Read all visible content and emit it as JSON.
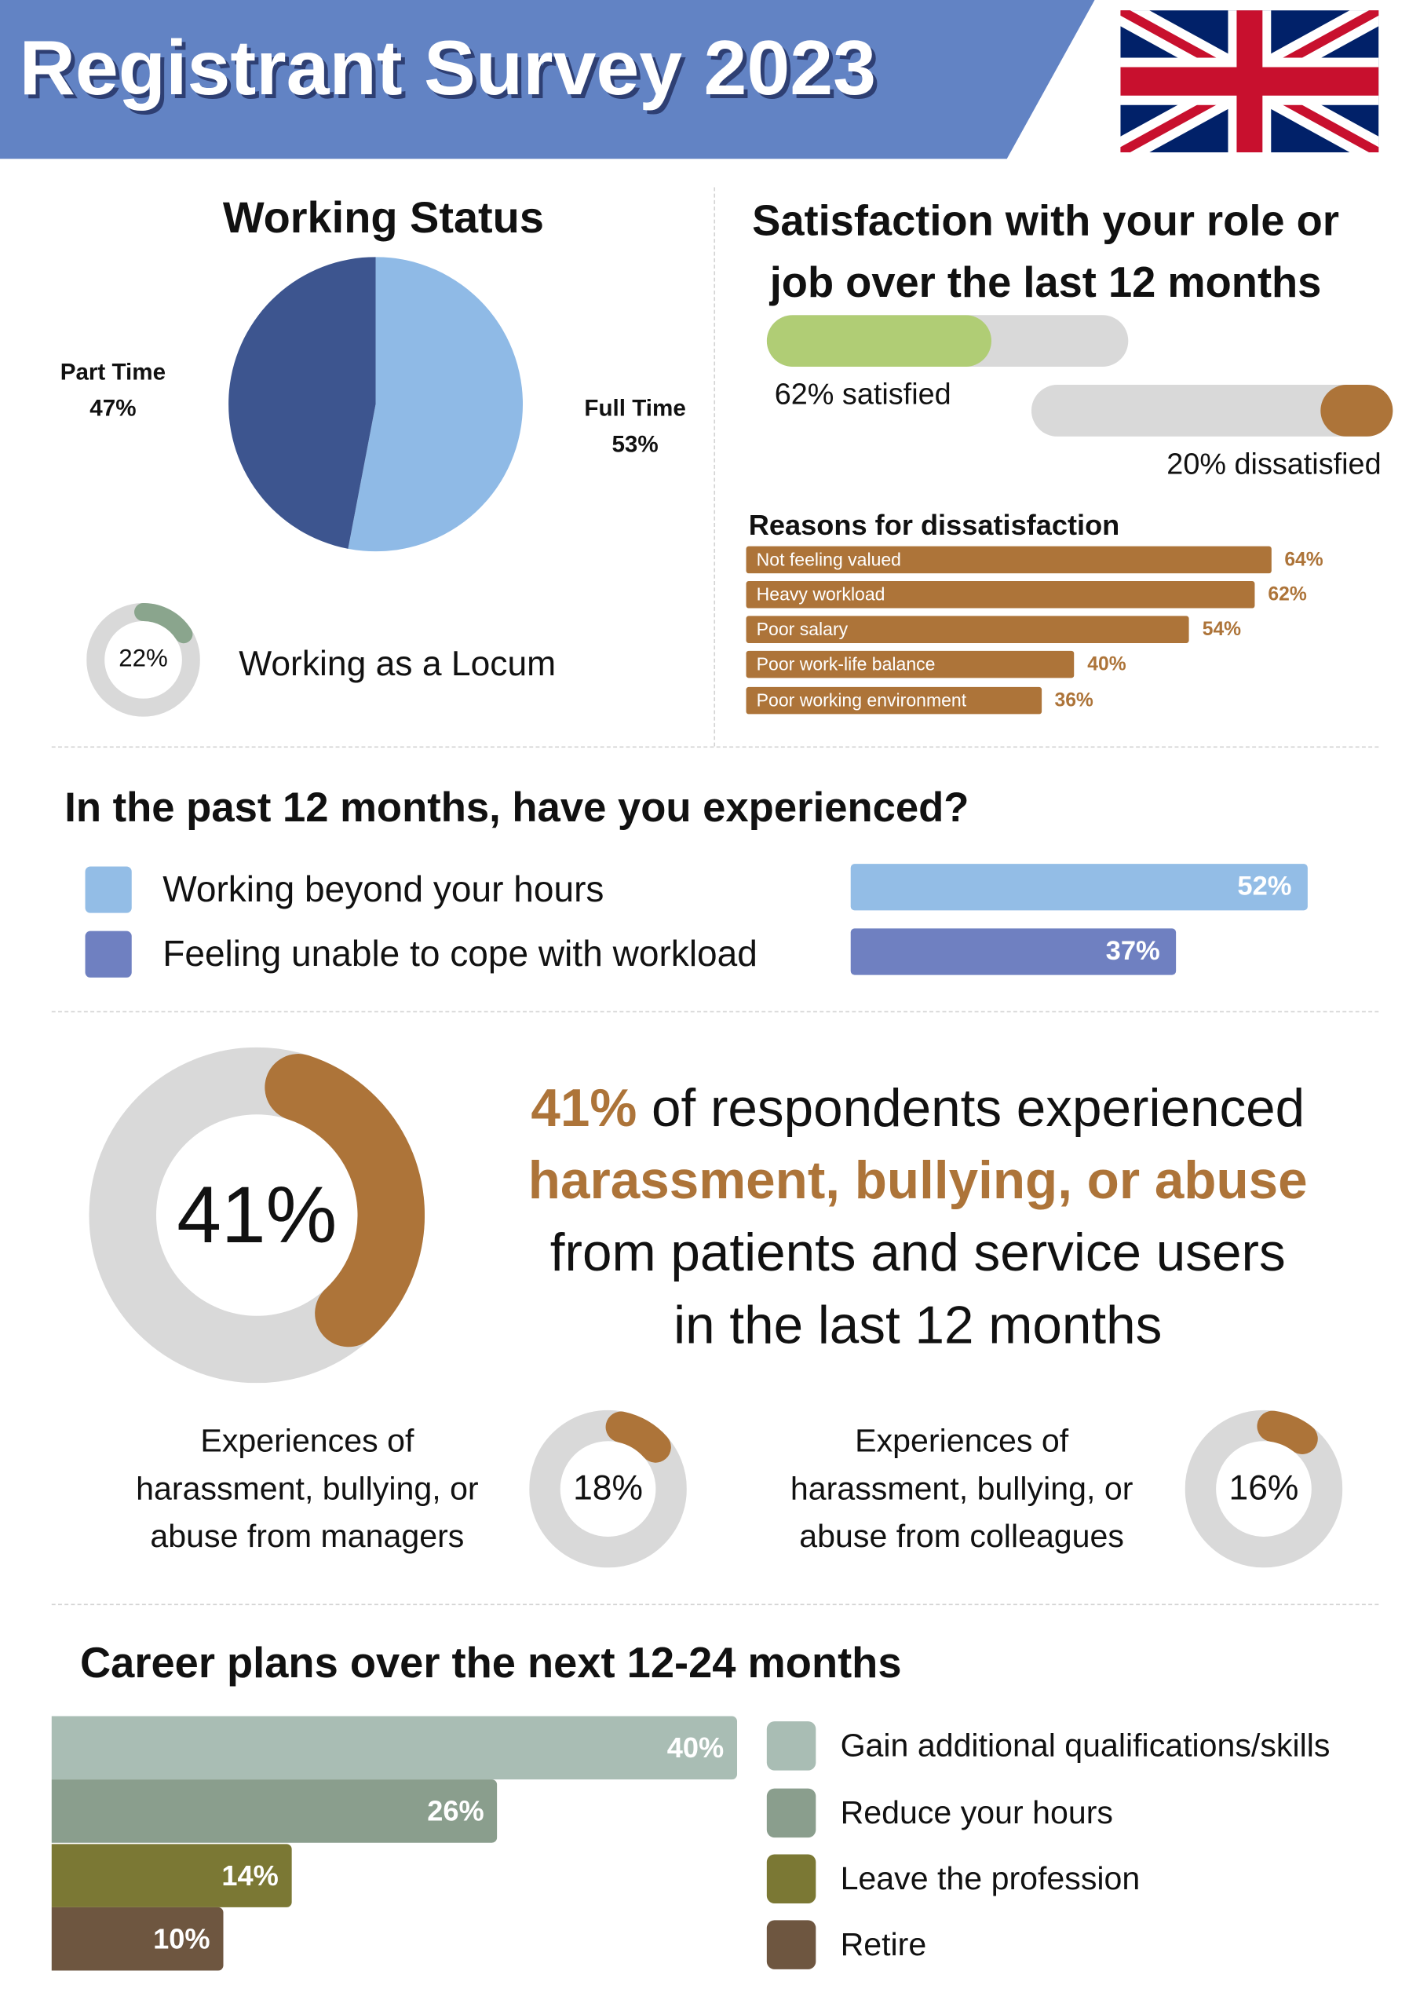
{
  "header": {
    "title": "Registrant Survey 2023",
    "accent": "#6283c4"
  },
  "working_status": {
    "title": "Working Status",
    "part_label": "Part Time",
    "part_pct": "47%",
    "full_label": "Full Time",
    "full_pct": "53%",
    "locum_pct": "22%",
    "locum_label": "Working as a Locum",
    "locum_value": 22
  },
  "satisfaction": {
    "title_line1": "Satisfaction with your role or",
    "title_line2": "job over the last 12 months",
    "satisfied_label": "62% satisfied",
    "satisfied_value": 62,
    "dissatisfied_label": "20% dissatisfied",
    "dissatisfied_value": 20
  },
  "reasons": {
    "title": "Reasons for dissatisfaction",
    "items": [
      {
        "label": "Not feeling valued",
        "pct": "64%",
        "value": 64
      },
      {
        "label": "Heavy workload",
        "pct": "62%",
        "value": 62
      },
      {
        "label": "Poor salary",
        "pct": "54%",
        "value": 54
      },
      {
        "label": "Poor work-life balance",
        "pct": "40%",
        "value": 40
      },
      {
        "label": "Poor working environment",
        "pct": "36%",
        "value": 36
      }
    ]
  },
  "experienced": {
    "title": "In the past 12 months, have you experienced?",
    "items": [
      {
        "label": "Working beyond your hours",
        "pct": "52%",
        "value": 52,
        "color": "#93bde6"
      },
      {
        "label": "Feeling unable to cope with workload",
        "pct": "37%",
        "value": 37,
        "color": "#6f80c1"
      }
    ]
  },
  "harassment": {
    "pct": "41%",
    "value": 41,
    "line1_pct": "41%",
    "line1_rest": " of respondents experienced",
    "line2": "harassment, bullying, or abuse",
    "line3": "from patients and service users",
    "line4": "in the last 12 months",
    "managers": {
      "line1": "Experiences of",
      "line2": "harassment, bullying, or",
      "line3": "abuse from managers",
      "pct": "18%",
      "value": 18
    },
    "colleagues": {
      "line1": "Experiences of",
      "line2": "harassment, bullying, or",
      "line3": "abuse from colleagues",
      "pct": "16%",
      "value": 16
    }
  },
  "chart_data": [
    {
      "type": "pie",
      "title": "Working Status",
      "categories": [
        "Full Time",
        "Part Time"
      ],
      "values": [
        53,
        47
      ]
    },
    {
      "type": "bar",
      "title": "Reasons for dissatisfaction",
      "categories": [
        "Not feeling valued",
        "Heavy workload",
        "Poor salary",
        "Poor work-life balance",
        "Poor working environment"
      ],
      "values": [
        64,
        62,
        54,
        40,
        36
      ]
    },
    {
      "type": "bar",
      "title": "Career plans over the next 12-24 months",
      "categories": [
        "Gain additional qualifications/skills",
        "Reduce your hours",
        "Leave the profession",
        "Retire"
      ],
      "values": [
        40,
        26,
        14,
        10
      ]
    }
  ],
  "career": {
    "title": "Career plans over the next 12-24 months",
    "items": [
      {
        "label": "Gain additional qualifications/skills",
        "pct": "40%",
        "value": 40,
        "color": "#a9bdb4"
      },
      {
        "label": "Reduce your hours",
        "pct": "26%",
        "value": 26,
        "color": "#8a9e8d"
      },
      {
        "label": "Leave the profession",
        "pct": "14%",
        "value": 14,
        "color": "#7b7834"
      },
      {
        "label": "Retire",
        "pct": "10%",
        "value": 10,
        "color": "#6e5640"
      }
    ]
  },
  "colors": {
    "brown": "#ad7439",
    "gray": "#d9d9d9",
    "green": "#b0cd75",
    "locum": "#8aa58d",
    "pie_full": "#8fbae6",
    "pie_part": "#3d558f"
  }
}
